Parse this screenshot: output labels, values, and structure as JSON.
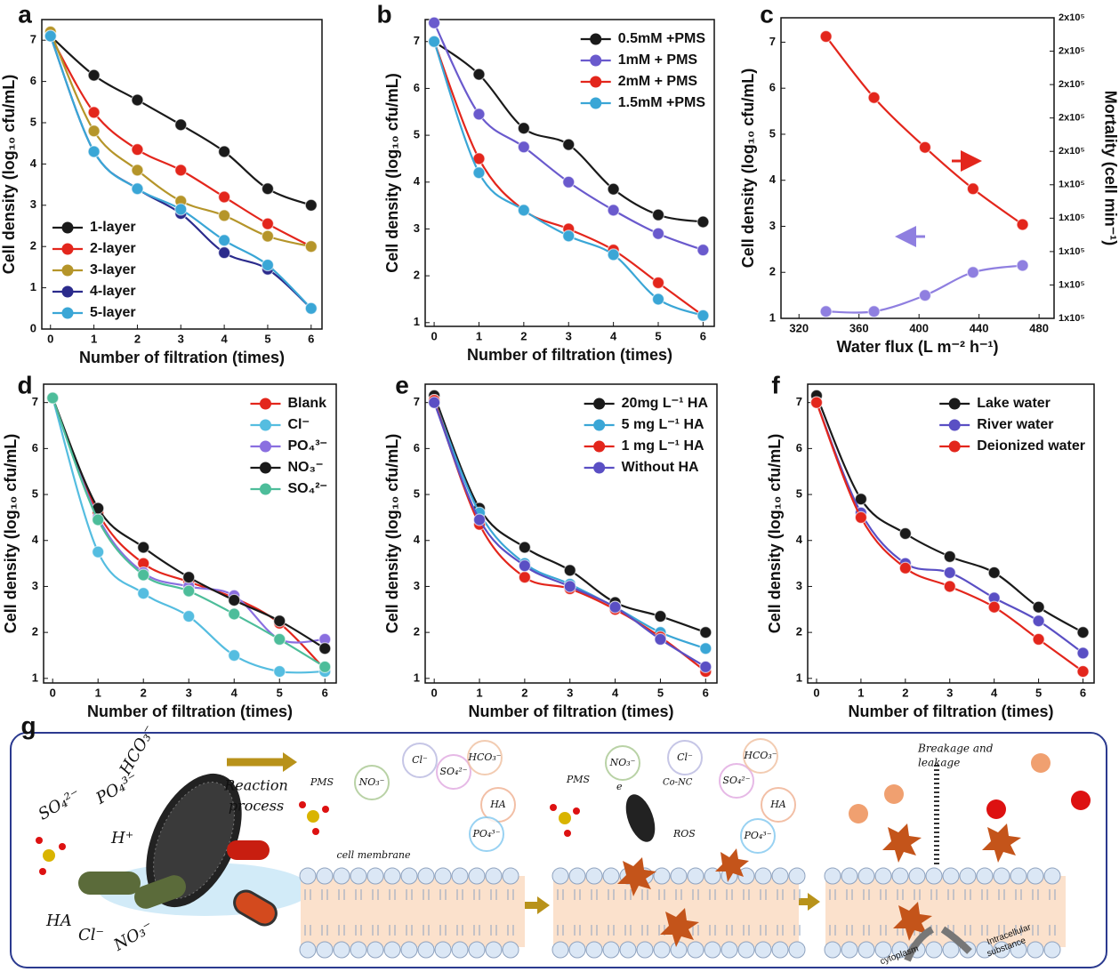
{
  "chart_data": [
    {
      "type": "line",
      "label": "a",
      "xlabel": "Number of filtration (times)",
      "ylabel": "Cell density (log₁₀ cfu/mL)",
      "x": [
        0,
        1,
        2,
        3,
        4,
        5,
        6
      ],
      "xlim": [
        -0.2,
        6.25
      ],
      "xticks": [
        0,
        1,
        2,
        3,
        4,
        5,
        6
      ],
      "ylim": [
        0,
        7.5
      ],
      "yticks": [
        0,
        1,
        2,
        3,
        4,
        5,
        6,
        7
      ],
      "legend": "lower left",
      "legend_text_colored": false,
      "series": [
        {
          "name": "1-layer",
          "color": "#1a1a1a",
          "values": [
            7.1,
            6.15,
            5.55,
            4.95,
            4.3,
            3.4,
            3.0
          ]
        },
        {
          "name": "2-layer",
          "color": "#e3261c",
          "values": [
            7.1,
            5.25,
            4.35,
            3.85,
            3.2,
            2.55,
            2.0
          ]
        },
        {
          "name": "3-layer",
          "color": "#b5952a",
          "values": [
            7.2,
            4.8,
            3.85,
            3.1,
            2.75,
            2.25,
            2.0
          ]
        },
        {
          "name": "4-layer",
          "color": "#2b2b8c",
          "values": [
            7.1,
            4.3,
            3.4,
            2.8,
            1.85,
            1.45,
            0.5
          ]
        },
        {
          "name": "5-layer",
          "color": "#3aa6d6",
          "values": [
            7.1,
            4.3,
            3.4,
            2.9,
            2.15,
            1.55,
            0.5
          ]
        }
      ]
    },
    {
      "type": "line",
      "label": "b",
      "xlabel": "Number of filtration (times)",
      "ylabel": "Cell density (log₁₀ cfu/mL)",
      "x": [
        0,
        1,
        2,
        3,
        4,
        5,
        6
      ],
      "xlim": [
        -0.2,
        6.25
      ],
      "xticks": [
        0,
        1,
        2,
        3,
        4,
        5,
        6
      ],
      "ylim": [
        0.92,
        7.47
      ],
      "yticks": [
        1,
        2,
        3,
        4,
        5,
        6,
        7
      ],
      "legend": "upper right",
      "legend_text_colored": true,
      "series": [
        {
          "name": "0.5mM +PMS",
          "color": "#1a1a1a",
          "values": [
            7.0,
            6.3,
            5.15,
            4.8,
            3.85,
            3.3,
            3.15
          ]
        },
        {
          "name": "1mM  + PMS",
          "color": "#6a5acd",
          "values": [
            7.4,
            5.45,
            4.75,
            4.0,
            3.4,
            2.9,
            2.55
          ]
        },
        {
          "name": "2mM  + PMS",
          "color": "#e3261c",
          "values": [
            7.0,
            4.5,
            3.4,
            3.0,
            2.55,
            1.85,
            1.15
          ]
        },
        {
          "name": "1.5mM +PMS",
          "color": "#3aa6d6",
          "values": [
            7.0,
            4.2,
            3.4,
            2.85,
            2.45,
            1.5,
            1.15
          ]
        }
      ]
    },
    {
      "type": "line",
      "label": "c",
      "xlabel": "Water flux (L m⁻² h⁻¹)",
      "ylabel": "Cell density (log₁₀ cfu/mL)",
      "y2label": "Mortality (cell min⁻¹)",
      "x": [
        338,
        370,
        404,
        436,
        469
      ],
      "xlim": [
        308,
        490
      ],
      "xticks": [
        320,
        360,
        400,
        440,
        480
      ],
      "ylim": [
        1,
        7.53
      ],
      "yticks": [
        1,
        2,
        3,
        4,
        5,
        6,
        7
      ],
      "y2lim": [
        110000,
        200000
      ],
      "y2ticks": [
        {
          "value": 110000,
          "label": "1x10⁵"
        },
        {
          "value": 120000,
          "label": "1x10⁵"
        },
        {
          "value": 130000,
          "label": "1x10⁵"
        },
        {
          "value": 140000,
          "label": "1x10⁵"
        },
        {
          "value": 150000,
          "label": "1x10⁵"
        },
        {
          "value": 160000,
          "label": "2x10⁵"
        },
        {
          "value": 170000,
          "label": "2x10⁵"
        },
        {
          "value": 180000,
          "label": "2x10⁵"
        },
        {
          "value": 190000,
          "label": "2x10⁵"
        },
        {
          "value": 200000,
          "label": "2x10⁵"
        }
      ],
      "series": [
        {
          "color": "#e3261c",
          "axis": "y2",
          "values": [
            194400,
            176100,
            161200,
            148800,
            138100
          ]
        },
        {
          "color": "#8f7fe0",
          "values": [
            1.15,
            1.15,
            1.5,
            2.0,
            2.15
          ]
        }
      ]
    },
    {
      "type": "line",
      "label": "d",
      "xlabel": "Number of filtration (times)",
      "ylabel": "Cell density (log₁₀ cfu/mL)",
      "x": [
        0,
        1,
        2,
        3,
        4,
        5,
        6
      ],
      "xlim": [
        -0.2,
        6.25
      ],
      "xticks": [
        0,
        1,
        2,
        3,
        4,
        5,
        6
      ],
      "ylim": [
        0.9,
        7.4
      ],
      "yticks": [
        1,
        2,
        3,
        4,
        5,
        6,
        7
      ],
      "legend": "upper right",
      "legend_text_colored": true,
      "series": [
        {
          "name": "Blank",
          "color": "#e3261c",
          "values": [
            7.1,
            4.6,
            3.5,
            3.1,
            2.75,
            2.2,
            1.2
          ]
        },
        {
          "name": "Cl⁻",
          "color": "#55bde0",
          "values": [
            7.1,
            3.75,
            2.85,
            2.35,
            1.5,
            1.15,
            1.15
          ]
        },
        {
          "name": "PO₄³⁻",
          "color": "#8a6fe0",
          "values": [
            7.1,
            4.5,
            3.3,
            3.0,
            2.8,
            1.85,
            1.85
          ]
        },
        {
          "name": "NO₃⁻",
          "color": "#1a1a1a",
          "values": [
            7.1,
            4.7,
            3.85,
            3.2,
            2.7,
            2.25,
            1.65
          ]
        },
        {
          "name": "SO₄²⁻",
          "color": "#4dbd9a",
          "values": [
            7.1,
            4.45,
            3.25,
            2.9,
            2.4,
            1.85,
            1.25
          ]
        }
      ]
    },
    {
      "type": "line",
      "label": "e",
      "xlabel": "Number of filtration (times)",
      "ylabel": "Cell density (log₁₀ cfu/mL)",
      "x": [
        0,
        1,
        2,
        3,
        4,
        5,
        6
      ],
      "xlim": [
        -0.2,
        6.25
      ],
      "xticks": [
        0,
        1,
        2,
        3,
        4,
        5,
        6
      ],
      "ylim": [
        0.9,
        7.4
      ],
      "yticks": [
        1,
        2,
        3,
        4,
        5,
        6,
        7
      ],
      "legend": "upper right",
      "legend_text_colored": true,
      "series": [
        {
          "name": "20mg L⁻¹  HA",
          "color": "#1a1a1a",
          "values": [
            7.15,
            4.7,
            3.85,
            3.35,
            2.65,
            2.35,
            2.0
          ]
        },
        {
          "name": "5 mg L⁻¹   HA",
          "color": "#3aa6d6",
          "values": [
            7.05,
            4.6,
            3.5,
            3.05,
            2.55,
            2.0,
            1.65
          ]
        },
        {
          "name": "1 mg L⁻¹   HA",
          "color": "#e3261c",
          "values": [
            7.05,
            4.35,
            3.2,
            2.95,
            2.5,
            1.9,
            1.15
          ]
        },
        {
          "name": "Without   HA",
          "color": "#5a4fc4",
          "values": [
            7.0,
            4.45,
            3.45,
            3.0,
            2.55,
            1.85,
            1.25
          ]
        }
      ]
    },
    {
      "type": "line",
      "label": "f",
      "xlabel": "Number of filtration (times)",
      "ylabel": "Cell density (log₁₀ cfu/mL)",
      "x": [
        0,
        1,
        2,
        3,
        4,
        5,
        6
      ],
      "xlim": [
        -0.2,
        6.25
      ],
      "xticks": [
        0,
        1,
        2,
        3,
        4,
        5,
        6
      ],
      "ylim": [
        0.9,
        7.4
      ],
      "yticks": [
        1,
        2,
        3,
        4,
        5,
        6,
        7
      ],
      "legend": "upper right",
      "legend_text_colored": true,
      "series": [
        {
          "name": "Lake water",
          "color": "#1a1a1a",
          "values": [
            7.15,
            4.9,
            4.15,
            3.65,
            3.3,
            2.55,
            2.0
          ]
        },
        {
          "name": "River water",
          "color": "#5a4fc4",
          "values": [
            7.0,
            4.6,
            3.5,
            3.3,
            2.75,
            2.25,
            1.55
          ]
        },
        {
          "name": "Deionized water",
          "color": "#e3261c",
          "values": [
            7.0,
            4.5,
            3.4,
            3.0,
            2.55,
            1.85,
            1.15
          ]
        }
      ]
    }
  ],
  "panel_g": {
    "label": "g",
    "left_ions": [
      "SO₄²⁻",
      "PO₄³⁻",
      "HCO₃⁻",
      "H⁺",
      "HA",
      "Cl⁻",
      "NO₃⁻"
    ],
    "reaction_process": [
      "Reaction",
      "process"
    ],
    "pms": [
      "PMS",
      "PMS"
    ],
    "cell_membrane": "cell membrane",
    "bubbles_1": [
      "NO₃⁻",
      "Cl⁻",
      "SO₄²⁻",
      "HCO₃⁻",
      "HA",
      "PO₄³⁻"
    ],
    "bubbles_2": [
      "NO₃⁻",
      "Cl⁻",
      "SO₄²⁻",
      "HCO₃⁻",
      "HA",
      "PO₄³⁻"
    ],
    "electron": "e",
    "catalyst": "Co-NC",
    "ros": "ROS",
    "breakage": [
      "Breakage and",
      "leakage"
    ],
    "cytoplasm": "cytoplasm",
    "intracellular": [
      "Intracellular",
      "substance"
    ]
  }
}
